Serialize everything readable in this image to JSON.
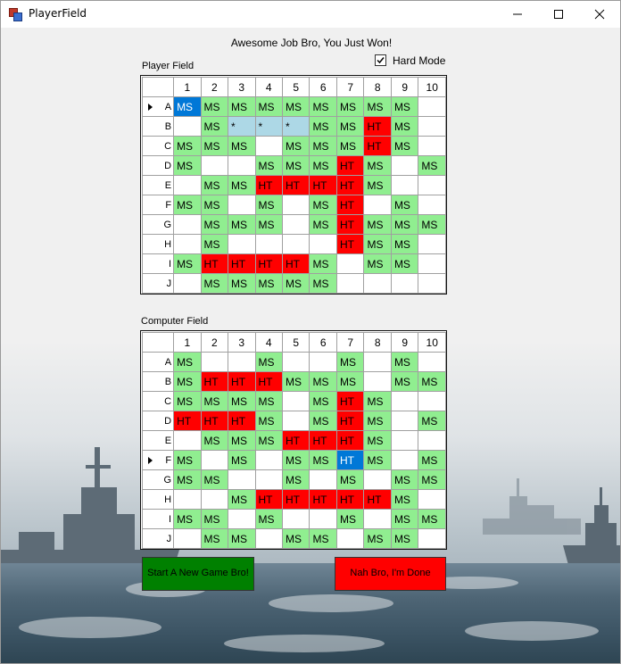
{
  "window": {
    "title": "PlayerField"
  },
  "message": "Awesome Job Bro, You Just Won!",
  "hard_mode": {
    "label": "Hard Mode",
    "checked": true
  },
  "player_field": {
    "label": "Player Field",
    "columns": [
      "1",
      "2",
      "3",
      "4",
      "5",
      "6",
      "7",
      "8",
      "9",
      "10"
    ],
    "row_labels": [
      "A",
      "B",
      "C",
      "D",
      "E",
      "F",
      "G",
      "H",
      "I",
      "J"
    ],
    "selected_row": 0,
    "rows": [
      [
        {
          "t": "MS",
          "s": "sel"
        },
        {
          "t": "MS",
          "s": "ms"
        },
        {
          "t": "MS",
          "s": "ms"
        },
        {
          "t": "MS",
          "s": "ms"
        },
        {
          "t": "MS",
          "s": "ms"
        },
        {
          "t": "MS",
          "s": "ms"
        },
        {
          "t": "MS",
          "s": "ms"
        },
        {
          "t": "MS",
          "s": "ms"
        },
        {
          "t": "MS",
          "s": "ms"
        },
        {
          "t": "",
          "s": "emp"
        }
      ],
      [
        {
          "t": "",
          "s": "emp"
        },
        {
          "t": "MS",
          "s": "ms"
        },
        {
          "t": "*",
          "s": "prev"
        },
        {
          "t": "*",
          "s": "prev"
        },
        {
          "t": "*",
          "s": "prev"
        },
        {
          "t": "MS",
          "s": "ms"
        },
        {
          "t": "MS",
          "s": "ms"
        },
        {
          "t": "HT",
          "s": "ht"
        },
        {
          "t": "MS",
          "s": "ms"
        },
        {
          "t": "",
          "s": "emp"
        }
      ],
      [
        {
          "t": "MS",
          "s": "ms"
        },
        {
          "t": "MS",
          "s": "ms"
        },
        {
          "t": "MS",
          "s": "ms"
        },
        {
          "t": "",
          "s": "emp"
        },
        {
          "t": "MS",
          "s": "ms"
        },
        {
          "t": "MS",
          "s": "ms"
        },
        {
          "t": "MS",
          "s": "ms"
        },
        {
          "t": "HT",
          "s": "ht"
        },
        {
          "t": "MS",
          "s": "ms"
        },
        {
          "t": "",
          "s": "emp"
        }
      ],
      [
        {
          "t": "MS",
          "s": "ms"
        },
        {
          "t": "",
          "s": "emp"
        },
        {
          "t": "",
          "s": "emp"
        },
        {
          "t": "MS",
          "s": "ms"
        },
        {
          "t": "MS",
          "s": "ms"
        },
        {
          "t": "MS",
          "s": "ms"
        },
        {
          "t": "HT",
          "s": "ht"
        },
        {
          "t": "MS",
          "s": "ms"
        },
        {
          "t": "",
          "s": "emp"
        },
        {
          "t": "MS",
          "s": "ms"
        }
      ],
      [
        {
          "t": "",
          "s": "emp"
        },
        {
          "t": "MS",
          "s": "ms"
        },
        {
          "t": "MS",
          "s": "ms"
        },
        {
          "t": "HT",
          "s": "ht"
        },
        {
          "t": "HT",
          "s": "ht"
        },
        {
          "t": "HT",
          "s": "ht"
        },
        {
          "t": "HT",
          "s": "ht"
        },
        {
          "t": "MS",
          "s": "ms"
        },
        {
          "t": "",
          "s": "emp"
        },
        {
          "t": "",
          "s": "emp"
        }
      ],
      [
        {
          "t": "MS",
          "s": "ms"
        },
        {
          "t": "MS",
          "s": "ms"
        },
        {
          "t": "",
          "s": "emp"
        },
        {
          "t": "MS",
          "s": "ms"
        },
        {
          "t": "",
          "s": "emp"
        },
        {
          "t": "MS",
          "s": "ms"
        },
        {
          "t": "HT",
          "s": "ht"
        },
        {
          "t": "",
          "s": "emp"
        },
        {
          "t": "MS",
          "s": "ms"
        },
        {
          "t": "",
          "s": "emp"
        }
      ],
      [
        {
          "t": "",
          "s": "emp"
        },
        {
          "t": "MS",
          "s": "ms"
        },
        {
          "t": "MS",
          "s": "ms"
        },
        {
          "t": "MS",
          "s": "ms"
        },
        {
          "t": "",
          "s": "emp"
        },
        {
          "t": "MS",
          "s": "ms"
        },
        {
          "t": "HT",
          "s": "ht"
        },
        {
          "t": "MS",
          "s": "ms"
        },
        {
          "t": "MS",
          "s": "ms"
        },
        {
          "t": "MS",
          "s": "ms"
        }
      ],
      [
        {
          "t": "",
          "s": "emp"
        },
        {
          "t": "MS",
          "s": "ms"
        },
        {
          "t": "",
          "s": "emp"
        },
        {
          "t": "",
          "s": "emp"
        },
        {
          "t": "",
          "s": "emp"
        },
        {
          "t": "",
          "s": "emp"
        },
        {
          "t": "HT",
          "s": "ht"
        },
        {
          "t": "MS",
          "s": "ms"
        },
        {
          "t": "MS",
          "s": "ms"
        },
        {
          "t": "",
          "s": "emp"
        }
      ],
      [
        {
          "t": "MS",
          "s": "ms"
        },
        {
          "t": "HT",
          "s": "ht"
        },
        {
          "t": "HT",
          "s": "ht"
        },
        {
          "t": "HT",
          "s": "ht"
        },
        {
          "t": "HT",
          "s": "ht"
        },
        {
          "t": "MS",
          "s": "ms"
        },
        {
          "t": "",
          "s": "emp"
        },
        {
          "t": "MS",
          "s": "ms"
        },
        {
          "t": "MS",
          "s": "ms"
        },
        {
          "t": "",
          "s": "emp"
        }
      ],
      [
        {
          "t": "",
          "s": "emp"
        },
        {
          "t": "MS",
          "s": "ms"
        },
        {
          "t": "MS",
          "s": "ms"
        },
        {
          "t": "MS",
          "s": "ms"
        },
        {
          "t": "MS",
          "s": "ms"
        },
        {
          "t": "MS",
          "s": "ms"
        },
        {
          "t": "",
          "s": "emp"
        },
        {
          "t": "",
          "s": "emp"
        },
        {
          "t": "",
          "s": "emp"
        },
        {
          "t": "",
          "s": "emp"
        }
      ]
    ]
  },
  "computer_field": {
    "label": "Computer Field",
    "columns": [
      "1",
      "2",
      "3",
      "4",
      "5",
      "6",
      "7",
      "8",
      "9",
      "10"
    ],
    "row_labels": [
      "A",
      "B",
      "C",
      "D",
      "E",
      "F",
      "G",
      "H",
      "I",
      "J"
    ],
    "selected_row": 5,
    "rows": [
      [
        {
          "t": "MS",
          "s": "ms"
        },
        {
          "t": "",
          "s": "emp"
        },
        {
          "t": "",
          "s": "emp"
        },
        {
          "t": "MS",
          "s": "ms"
        },
        {
          "t": "",
          "s": "emp"
        },
        {
          "t": "",
          "s": "emp"
        },
        {
          "t": "MS",
          "s": "ms"
        },
        {
          "t": "",
          "s": "emp"
        },
        {
          "t": "MS",
          "s": "ms"
        },
        {
          "t": "",
          "s": "emp"
        }
      ],
      [
        {
          "t": "MS",
          "s": "ms"
        },
        {
          "t": "HT",
          "s": "ht"
        },
        {
          "t": "HT",
          "s": "ht"
        },
        {
          "t": "HT",
          "s": "ht"
        },
        {
          "t": "MS",
          "s": "ms"
        },
        {
          "t": "MS",
          "s": "ms"
        },
        {
          "t": "MS",
          "s": "ms"
        },
        {
          "t": "",
          "s": "emp"
        },
        {
          "t": "MS",
          "s": "ms"
        },
        {
          "t": "MS",
          "s": "ms"
        }
      ],
      [
        {
          "t": "MS",
          "s": "ms"
        },
        {
          "t": "MS",
          "s": "ms"
        },
        {
          "t": "MS",
          "s": "ms"
        },
        {
          "t": "MS",
          "s": "ms"
        },
        {
          "t": "",
          "s": "emp"
        },
        {
          "t": "MS",
          "s": "ms"
        },
        {
          "t": "HT",
          "s": "ht"
        },
        {
          "t": "MS",
          "s": "ms"
        },
        {
          "t": "",
          "s": "emp"
        },
        {
          "t": "",
          "s": "emp"
        }
      ],
      [
        {
          "t": "HT",
          "s": "ht"
        },
        {
          "t": "HT",
          "s": "ht"
        },
        {
          "t": "HT",
          "s": "ht"
        },
        {
          "t": "MS",
          "s": "ms"
        },
        {
          "t": "",
          "s": "emp"
        },
        {
          "t": "MS",
          "s": "ms"
        },
        {
          "t": "HT",
          "s": "ht"
        },
        {
          "t": "MS",
          "s": "ms"
        },
        {
          "t": "",
          "s": "emp"
        },
        {
          "t": "MS",
          "s": "ms"
        }
      ],
      [
        {
          "t": "",
          "s": "emp"
        },
        {
          "t": "MS",
          "s": "ms"
        },
        {
          "t": "MS",
          "s": "ms"
        },
        {
          "t": "MS",
          "s": "ms"
        },
        {
          "t": "HT",
          "s": "ht"
        },
        {
          "t": "HT",
          "s": "ht"
        },
        {
          "t": "HT",
          "s": "ht"
        },
        {
          "t": "MS",
          "s": "ms"
        },
        {
          "t": "",
          "s": "emp"
        },
        {
          "t": "",
          "s": "emp"
        }
      ],
      [
        {
          "t": "MS",
          "s": "ms"
        },
        {
          "t": "",
          "s": "emp"
        },
        {
          "t": "MS",
          "s": "ms"
        },
        {
          "t": "",
          "s": "emp"
        },
        {
          "t": "MS",
          "s": "ms"
        },
        {
          "t": "MS",
          "s": "ms"
        },
        {
          "t": "HT",
          "s": "sel"
        },
        {
          "t": "MS",
          "s": "ms"
        },
        {
          "t": "",
          "s": "emp"
        },
        {
          "t": "MS",
          "s": "ms"
        }
      ],
      [
        {
          "t": "MS",
          "s": "ms"
        },
        {
          "t": "MS",
          "s": "ms"
        },
        {
          "t": "",
          "s": "emp"
        },
        {
          "t": "",
          "s": "emp"
        },
        {
          "t": "MS",
          "s": "ms"
        },
        {
          "t": "",
          "s": "emp"
        },
        {
          "t": "MS",
          "s": "ms"
        },
        {
          "t": "",
          "s": "emp"
        },
        {
          "t": "MS",
          "s": "ms"
        },
        {
          "t": "MS",
          "s": "ms"
        }
      ],
      [
        {
          "t": "",
          "s": "emp"
        },
        {
          "t": "",
          "s": "emp"
        },
        {
          "t": "MS",
          "s": "ms"
        },
        {
          "t": "HT",
          "s": "ht"
        },
        {
          "t": "HT",
          "s": "ht"
        },
        {
          "t": "HT",
          "s": "ht"
        },
        {
          "t": "HT",
          "s": "ht"
        },
        {
          "t": "HT",
          "s": "ht"
        },
        {
          "t": "MS",
          "s": "ms"
        },
        {
          "t": "",
          "s": "emp"
        }
      ],
      [
        {
          "t": "MS",
          "s": "ms"
        },
        {
          "t": "MS",
          "s": "ms"
        },
        {
          "t": "",
          "s": "emp"
        },
        {
          "t": "MS",
          "s": "ms"
        },
        {
          "t": "",
          "s": "emp"
        },
        {
          "t": "",
          "s": "emp"
        },
        {
          "t": "MS",
          "s": "ms"
        },
        {
          "t": "",
          "s": "emp"
        },
        {
          "t": "MS",
          "s": "ms"
        },
        {
          "t": "MS",
          "s": "ms"
        }
      ],
      [
        {
          "t": "",
          "s": "emp"
        },
        {
          "t": "MS",
          "s": "ms"
        },
        {
          "t": "MS",
          "s": "ms"
        },
        {
          "t": "",
          "s": "emp"
        },
        {
          "t": "MS",
          "s": "ms"
        },
        {
          "t": "MS",
          "s": "ms"
        },
        {
          "t": "",
          "s": "emp"
        },
        {
          "t": "MS",
          "s": "ms"
        },
        {
          "t": "MS",
          "s": "ms"
        },
        {
          "t": "",
          "s": "emp"
        }
      ]
    ]
  },
  "buttons": {
    "new_game": "Start A New Game Bro!",
    "done": "Nah Bro, I'm Done"
  },
  "colors": {
    "miss": "#90ee90",
    "hit": "#ff0000",
    "selected": "#0078d7",
    "preview": "#add8e6",
    "new_game_button": "#008000",
    "done_button": "#ff0000"
  }
}
